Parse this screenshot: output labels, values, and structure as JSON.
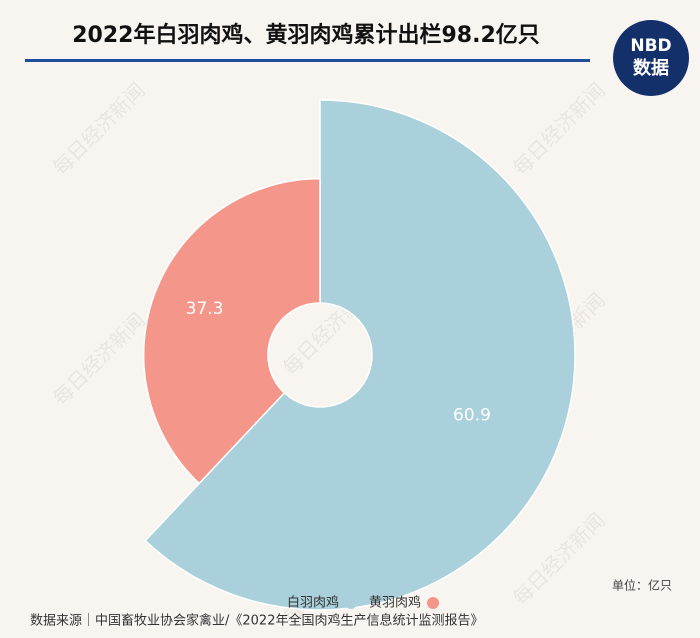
{
  "chart_data": {
    "type": "pie",
    "rose": true,
    "title": "2022年白羽肉鸡、黄羽肉鸡累计出栏98.2亿只",
    "categories": [
      "白羽肉鸡",
      "黄羽肉鸡"
    ],
    "values": [
      60.9,
      37.3
    ],
    "colors": [
      "#a9d0db",
      "#f5968a"
    ],
    "legend": "bottom",
    "unit": "单位：亿只",
    "source": "数据来源｜中国畜牧业协会家禽业/《2022年全国肉鸡生产信息统计监测报告》",
    "watermark": "每日经济新闻",
    "logo": {
      "top": "NBD",
      "bottom": "数据"
    }
  }
}
